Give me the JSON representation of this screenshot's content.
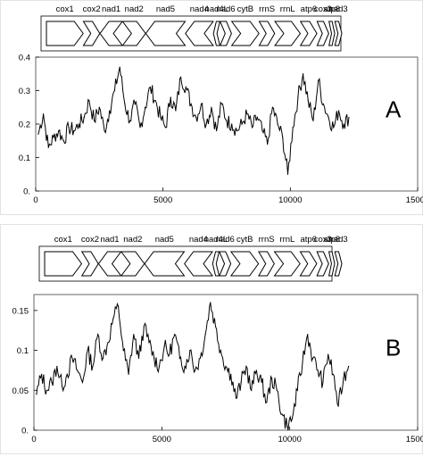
{
  "colors": {
    "line": "#000000",
    "frame": "#555555",
    "background": "#ffffff"
  },
  "gene_map": [
    {
      "name": "cox1",
      "shape": "right-arrow",
      "start": 1,
      "end": 1550
    },
    {
      "name": "cox2",
      "shape": "right-arrow",
      "start": 1560,
      "end": 2250
    },
    {
      "name": "nad1",
      "shape": "left-arrow",
      "start": 2260,
      "end": 3200
    },
    {
      "name": "nad2",
      "shape": "right-arrow",
      "start": 3210,
      "end": 4180
    },
    {
      "name": "nad5",
      "shape": "left-arrow",
      "start": 4190,
      "end": 5850
    },
    {
      "name": "nad4",
      "shape": "left-arrow",
      "start": 5860,
      "end": 7030
    },
    {
      "name": "nad4L",
      "shape": "left-arrow",
      "start": 7040,
      "end": 7310
    },
    {
      "name": "nad6",
      "shape": "right-arrow",
      "start": 7320,
      "end": 7800
    },
    {
      "name": "cytB",
      "shape": "right-arrow",
      "start": 7810,
      "end": 8960
    },
    {
      "name": "rrnS",
      "shape": "right-arrow",
      "start": 8970,
      "end": 9620
    },
    {
      "name": "rrnL",
      "shape": "right-arrow",
      "start": 9630,
      "end": 10700
    },
    {
      "name": "atp6",
      "shape": "right-arrow",
      "start": 10710,
      "end": 11400
    },
    {
      "name": "cox3",
      "shape": "right-arrow",
      "start": 11410,
      "end": 11900
    },
    {
      "name": "atp8",
      "shape": "right-arrow",
      "start": 11910,
      "end": 12150
    },
    {
      "name": "nad3",
      "shape": "right-arrow",
      "start": 12160,
      "end": 12450
    }
  ],
  "chart_data": [
    {
      "type": "line",
      "panel_label": "A",
      "xlim": [
        0,
        15000
      ],
      "ylim": [
        0,
        0.4
      ],
      "x_ticks": [
        0,
        5000,
        10000,
        15000
      ],
      "x_tick_labels": [
        "0",
        "5000",
        "10000",
        "15000"
      ],
      "y_ticks": [
        0,
        0.1,
        0.2,
        0.3,
        0.4
      ],
      "y_tick_labels": [
        "0.",
        "0.1",
        "0.2",
        "0.3",
        "0.4"
      ],
      "grid": false,
      "series": [
        {
          "x": [
            100,
            300,
            500,
            700,
            900,
            1100,
            1300,
            1500,
            1700,
            1900,
            2100,
            2300,
            2500,
            2700,
            2900,
            3100,
            3300,
            3500,
            3700,
            3900,
            4100,
            4300,
            4500,
            4700,
            4900,
            5100,
            5300,
            5500,
            5700,
            5900,
            6100,
            6300,
            6500,
            6700,
            6900,
            7100,
            7300,
            7500,
            7700,
            7900,
            8100,
            8300,
            8500,
            8700,
            8900,
            9100,
            9300,
            9500,
            9700,
            9900,
            10100,
            10300,
            10500,
            10700,
            10900,
            11100,
            11300,
            11500,
            11700,
            11900,
            12100,
            12300
          ],
          "values": [
            0.17,
            0.23,
            0.13,
            0.16,
            0.18,
            0.15,
            0.19,
            0.18,
            0.2,
            0.22,
            0.27,
            0.21,
            0.25,
            0.18,
            0.24,
            0.3,
            0.37,
            0.26,
            0.21,
            0.26,
            0.19,
            0.25,
            0.31,
            0.27,
            0.22,
            0.19,
            0.28,
            0.24,
            0.34,
            0.31,
            0.26,
            0.22,
            0.26,
            0.2,
            0.25,
            0.18,
            0.26,
            0.21,
            0.2,
            0.18,
            0.2,
            0.23,
            0.19,
            0.22,
            0.18,
            0.14,
            0.25,
            0.2,
            0.16,
            0.05,
            0.19,
            0.28,
            0.35,
            0.27,
            0.21,
            0.33,
            0.26,
            0.22,
            0.19,
            0.24,
            0.2,
            0.22
          ]
        }
      ]
    },
    {
      "type": "line",
      "panel_label": "B",
      "xlim": [
        0,
        15000
      ],
      "ylim": [
        0,
        0.17
      ],
      "x_ticks": [
        0,
        5000,
        10000,
        15000
      ],
      "x_tick_labels": [
        "0",
        "5000",
        "10000",
        "15000"
      ],
      "y_ticks": [
        0,
        0.05,
        0.1,
        0.15
      ],
      "y_tick_labels": [
        "0.",
        "0.05",
        "0.1",
        "0.15"
      ],
      "grid": false,
      "series": [
        {
          "x": [
            100,
            300,
            500,
            700,
            900,
            1100,
            1300,
            1500,
            1700,
            1900,
            2100,
            2300,
            2500,
            2700,
            2900,
            3100,
            3300,
            3500,
            3700,
            3900,
            4100,
            4300,
            4500,
            4700,
            4900,
            5100,
            5300,
            5500,
            5700,
            5900,
            6100,
            6300,
            6500,
            6700,
            6900,
            7100,
            7300,
            7500,
            7700,
            7900,
            8100,
            8300,
            8500,
            8700,
            8900,
            9100,
            9300,
            9500,
            9700,
            9900,
            10100,
            10300,
            10500,
            10700,
            10900,
            11100,
            11300,
            11500,
            11700,
            11900,
            12100,
            12300
          ],
          "values": [
            0.045,
            0.07,
            0.05,
            0.06,
            0.08,
            0.055,
            0.07,
            0.09,
            0.075,
            0.06,
            0.1,
            0.08,
            0.12,
            0.09,
            0.11,
            0.14,
            0.155,
            0.1,
            0.07,
            0.12,
            0.09,
            0.13,
            0.11,
            0.09,
            0.08,
            0.105,
            0.095,
            0.12,
            0.09,
            0.08,
            0.1,
            0.075,
            0.09,
            0.12,
            0.16,
            0.13,
            0.1,
            0.08,
            0.07,
            0.04,
            0.06,
            0.08,
            0.05,
            0.075,
            0.06,
            0.035,
            0.065,
            0.05,
            0.02,
            0.005,
            0.015,
            0.05,
            0.085,
            0.12,
            0.09,
            0.075,
            0.06,
            0.095,
            0.07,
            0.03,
            0.065,
            0.08
          ]
        }
      ]
    }
  ]
}
